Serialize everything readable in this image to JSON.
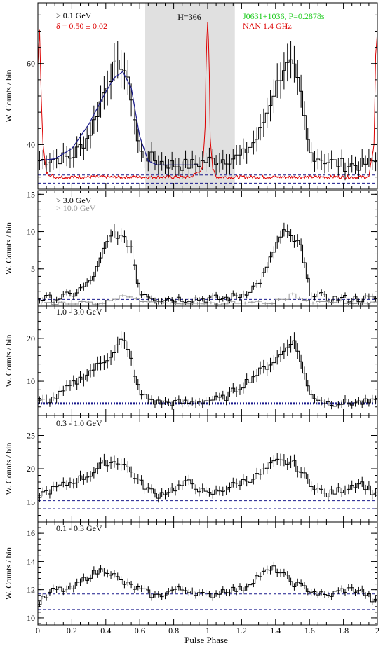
{
  "figure": {
    "x_axis_label": "Pulse Phase",
    "x_ticks": [
      "0",
      "0.2",
      "0.4",
      "0.6",
      "0.8",
      "1",
      "1.2",
      "1.4",
      "1.6",
      "1.8",
      "2"
    ]
  },
  "colors": {
    "hist": "#000000",
    "radio": "#dd0000",
    "fit": "#1a1a8c",
    "bg_level": "#1a1a8c",
    "shade": "#e0e0e0",
    "green": "#22cc22",
    "gray": "#999999"
  },
  "chart_data": [
    {
      "type": "line",
      "title": "",
      "ylabel": "W. Counts / bin",
      "xlim": [
        0,
        2
      ],
      "ylim": [
        29,
        75
      ],
      "yticks": [
        40,
        60
      ],
      "grid": false,
      "shaded_region": [
        0.63,
        1.16
      ],
      "annotations": {
        "energy": "> 0.1 GeV",
        "delta": "δ = 0.50 ± 0.02",
        "htest": "H=366",
        "pulsar": "J0631+1036, P=0.2878s",
        "radio": "NAN 1.4 GHz"
      },
      "dashed_levels": [
        32.5,
        30.5
      ],
      "series": [
        {
          "style": "histogram",
          "x": [
            0.0,
            0.2,
            0.3,
            0.4,
            0.45,
            0.5,
            0.55,
            0.6,
            0.7,
            0.8,
            0.9,
            1.0,
            1.2,
            1.3,
            1.4,
            1.45,
            1.5,
            1.55,
            1.6,
            1.7,
            1.8,
            1.9,
            2.0
          ],
          "y": [
            36,
            37,
            42,
            54,
            59,
            60,
            52,
            38,
            36,
            35,
            35,
            36,
            37,
            42,
            54,
            59,
            60,
            52,
            38,
            36,
            35,
            35,
            36
          ]
        },
        {
          "style": "fit-curve",
          "x": [
            0.0,
            0.1,
            0.2,
            0.3,
            0.4,
            0.45,
            0.5,
            0.55,
            0.6,
            0.65,
            0.7,
            0.8,
            0.9,
            0.95
          ],
          "y": [
            36,
            36.5,
            39,
            45,
            53,
            56.5,
            58,
            54,
            42,
            36,
            35,
            35,
            35,
            35
          ]
        },
        {
          "style": "radio-profile",
          "x": [
            0.0,
            0.01,
            0.02,
            0.03,
            0.05,
            0.1,
            0.5,
            0.9,
            0.97,
            0.985,
            0.99,
            0.995,
            1.0,
            1.005,
            1.01,
            1.015,
            1.03,
            1.05,
            1.5,
            1.95,
            1.98,
            1.99,
            2.0
          ],
          "y": [
            60,
            68,
            52,
            40,
            33,
            32,
            32,
            32,
            34,
            44,
            58,
            66,
            70,
            66,
            58,
            42,
            34,
            32,
            32,
            32,
            40,
            62,
            68
          ]
        }
      ]
    },
    {
      "type": "line",
      "title": "",
      "ylabel": "W. Counts / bin",
      "xlim": [
        0,
        2
      ],
      "ylim": [
        0,
        15.5
      ],
      "yticks": [
        5,
        10,
        15
      ],
      "grid": false,
      "annotations": {
        "label_1": "> 3.0 GeV",
        "label_2": "> 10.0 GeV"
      },
      "dashed_levels": [
        0.9
      ],
      "series": [
        {
          "name": "> 3.0 GeV",
          "style": "histogram",
          "x": [
            0.0,
            0.1,
            0.2,
            0.3,
            0.35,
            0.4,
            0.45,
            0.5,
            0.55,
            0.6,
            0.7,
            0.8,
            0.9,
            1.0,
            1.1,
            1.2,
            1.3,
            1.35,
            1.4,
            1.45,
            1.5,
            1.55,
            1.6,
            1.7,
            1.8,
            1.9,
            2.0
          ],
          "y": [
            1,
            1,
            1.5,
            3,
            5,
            8,
            10,
            9,
            8,
            2,
            1,
            1,
            1,
            1,
            1,
            1.5,
            3,
            5,
            8,
            10,
            9,
            8,
            2,
            1,
            1,
            1,
            1
          ]
        },
        {
          "name": "> 10.0 GeV",
          "style": "histogram-gray",
          "x": [
            0.0,
            0.4,
            0.45,
            0.5,
            0.55,
            0.6,
            1.0,
            1.4,
            1.45,
            1.5,
            1.55,
            1.6,
            2.0
          ],
          "y": [
            0.4,
            0.5,
            1,
            1.5,
            1.2,
            0.6,
            0.4,
            0.5,
            1,
            1.5,
            1.2,
            0.6,
            0.4
          ]
        }
      ]
    },
    {
      "type": "line",
      "title": "",
      "ylabel": "W. Counts / bin",
      "xlim": [
        0,
        2
      ],
      "ylim": [
        2,
        27.5
      ],
      "yticks": [
        10,
        20
      ],
      "grid": false,
      "annotations": {
        "label_1": "1.0 - 3.0 GeV"
      },
      "dashed_levels": [
        4.8
      ],
      "series": [
        {
          "style": "histogram",
          "x": [
            0.0,
            0.1,
            0.2,
            0.3,
            0.4,
            0.45,
            0.5,
            0.55,
            0.6,
            0.7,
            0.8,
            0.9,
            1.0,
            1.1,
            1.2,
            1.3,
            1.4,
            1.45,
            1.5,
            1.55,
            1.6,
            1.7,
            1.8,
            1.9,
            2.0
          ],
          "y": [
            5,
            6,
            9,
            12,
            15,
            17,
            20,
            15,
            7,
            5,
            5,
            5,
            5.5,
            6,
            9,
            12,
            15,
            17,
            20,
            15,
            7,
            5,
            5,
            5,
            5
          ]
        }
      ]
    },
    {
      "type": "line",
      "title": "",
      "ylabel": "W. Counts / bin",
      "xlim": [
        0,
        2
      ],
      "ylim": [
        12,
        28
      ],
      "yticks": [
        15,
        20,
        25
      ],
      "grid": false,
      "annotations": {
        "label_1": "0.3 - 1.0 GeV"
      },
      "dashed_levels": [
        15.2,
        14.0
      ],
      "series": [
        {
          "style": "histogram",
          "x": [
            0.0,
            0.1,
            0.2,
            0.3,
            0.4,
            0.5,
            0.6,
            0.7,
            0.8,
            0.9,
            1.0,
            1.1,
            1.2,
            1.3,
            1.4,
            1.5,
            1.6,
            1.7,
            1.8,
            1.9,
            2.0
          ],
          "y": [
            16,
            17,
            18,
            19,
            21,
            21,
            18,
            16,
            17,
            18,
            16,
            17,
            18,
            19,
            21,
            21,
            18,
            16,
            17,
            18,
            16
          ]
        }
      ]
    },
    {
      "type": "line",
      "title": "",
      "ylabel": "W. Counts / bin",
      "xlim": [
        0,
        2
      ],
      "ylim": [
        9.5,
        16.8
      ],
      "yticks": [
        10,
        12,
        14,
        16
      ],
      "grid": false,
      "annotations": {
        "label_1": "0.1 - 0.3 GeV"
      },
      "dashed_levels": [
        11.7,
        10.6
      ],
      "series": [
        {
          "style": "histogram",
          "x": [
            0.0,
            0.1,
            0.2,
            0.3,
            0.4,
            0.5,
            0.6,
            0.7,
            0.8,
            0.9,
            1.0,
            1.1,
            1.2,
            1.3,
            1.4,
            1.5,
            1.6,
            1.7,
            1.8,
            1.9,
            2.0
          ],
          "y": [
            11,
            12,
            12,
            13,
            13.5,
            12.5,
            12,
            11.5,
            12,
            12,
            11.5,
            12,
            12,
            13,
            13.5,
            12.5,
            12,
            11.5,
            12,
            12,
            11
          ]
        }
      ]
    }
  ]
}
